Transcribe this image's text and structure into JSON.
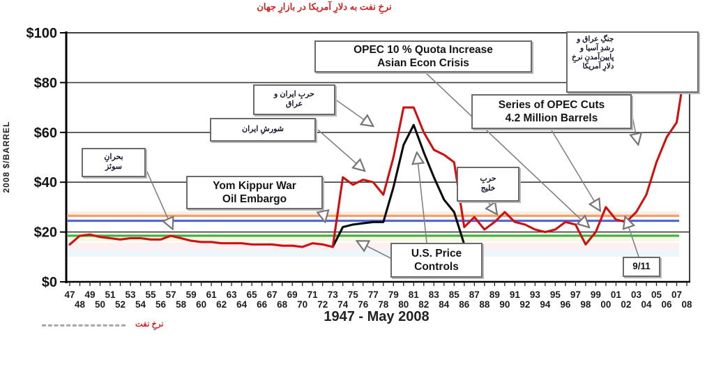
{
  "title": "نرخِ نفت به دلارِ آمریکا در بازارِ جهان",
  "y_axis": {
    "label": "2008 $/BARREL"
  },
  "x_axis": {
    "title": "1947 - May 2008",
    "row1": [
      "47",
      "49",
      "51",
      "53",
      "55",
      "57",
      "59",
      "61",
      "63",
      "65",
      "67",
      "69",
      "71",
      "73",
      "75",
      "77",
      "79",
      "81",
      "83",
      "85",
      "87",
      "89",
      "91",
      "93",
      "95",
      "97",
      "99",
      "01",
      "03",
      "05",
      "07"
    ],
    "row2": [
      "48",
      "50",
      "52",
      "54",
      "56",
      "58",
      "60",
      "62",
      "64",
      "66",
      "68",
      "70",
      "72",
      "74",
      "76",
      "78",
      "80",
      "82",
      "84",
      "86",
      "88",
      "90",
      "92",
      "94",
      "96",
      "98",
      "00",
      "02",
      "04",
      "06",
      "08"
    ]
  },
  "legend": {
    "label": "نرخِ نفت"
  },
  "annotations": {
    "suez": "بحرانِ\nسوئز",
    "iranian_revolution": "شورشِ ایران",
    "iran_iraq_war": "حربِ ایران و\nعراق",
    "opec_quota": "OPEC 10 % Quota Increase\nAsian Econ Crisis",
    "yom_kippur": "Yom Kippur War\nOil Embargo",
    "gulf_war": "حربِ\nخلیج",
    "series_opec_cuts": "Series of OPEC Cuts\n4.2 Million Barrels",
    "us_price_controls": "U.S. Price\nControls",
    "nine_eleven": "9/11",
    "growth_weaker_dollar": "جنگِ عراق و\nرشدِ آسیا و\nپایین‌آمدنِ نرخِ\nدلارِ آمریکا"
  },
  "chart_data": {
    "type": "line",
    "title": "نرخِ نفت به دلارِ آمریکا در بازارِ جهان",
    "xlabel": "1947 - May 2008",
    "ylabel": "2008 $/BARREL",
    "x_range": [
      1947,
      2008
    ],
    "ylim": [
      0,
      100
    ],
    "grid": "horizontal",
    "y_ticks": [
      {
        "label": "$100",
        "value": 100
      },
      {
        "label": "$80",
        "value": 80
      },
      {
        "label": "$60",
        "value": 60
      },
      {
        "label": "$40",
        "value": 40
      },
      {
        "label": "$20",
        "value": 20
      },
      {
        "label": "$0",
        "value": 0
      }
    ],
    "series": [
      {
        "name": "oil-price-2008-dollars",
        "color": "#d01010",
        "x_start": 1947,
        "values": [
          15,
          18.5,
          19,
          18,
          17.5,
          17,
          17.5,
          17.5,
          17,
          17,
          18.5,
          17.5,
          16.5,
          16,
          16,
          15.5,
          15.5,
          15.5,
          15,
          15,
          15,
          14.5,
          14.5,
          14,
          15.5,
          15,
          14,
          42,
          39,
          41,
          40,
          35,
          50,
          70,
          70,
          60,
          53,
          51,
          48,
          22,
          26,
          21,
          24,
          28,
          24,
          23,
          21,
          20,
          21,
          24,
          23,
          15,
          20,
          30,
          25,
          24,
          28,
          35,
          48,
          58,
          64,
          90
        ]
      },
      {
        "name": "nominal-oil-price",
        "color": "#0a0a0a",
        "x_start": 1973,
        "values": [
          14,
          22,
          23,
          23.5,
          24,
          24,
          38,
          55,
          63,
          52,
          42,
          33,
          28,
          15
        ]
      }
    ],
    "reference_lines": [
      {
        "name": "orange-reference-line",
        "value": 26.5,
        "color": "#f2a16b"
      },
      {
        "name": "blue-reference-line",
        "value": 24.5,
        "color": "#5468d4"
      },
      {
        "name": "green-reference-line",
        "value": 18.5,
        "color": "#3bae4e"
      }
    ]
  }
}
